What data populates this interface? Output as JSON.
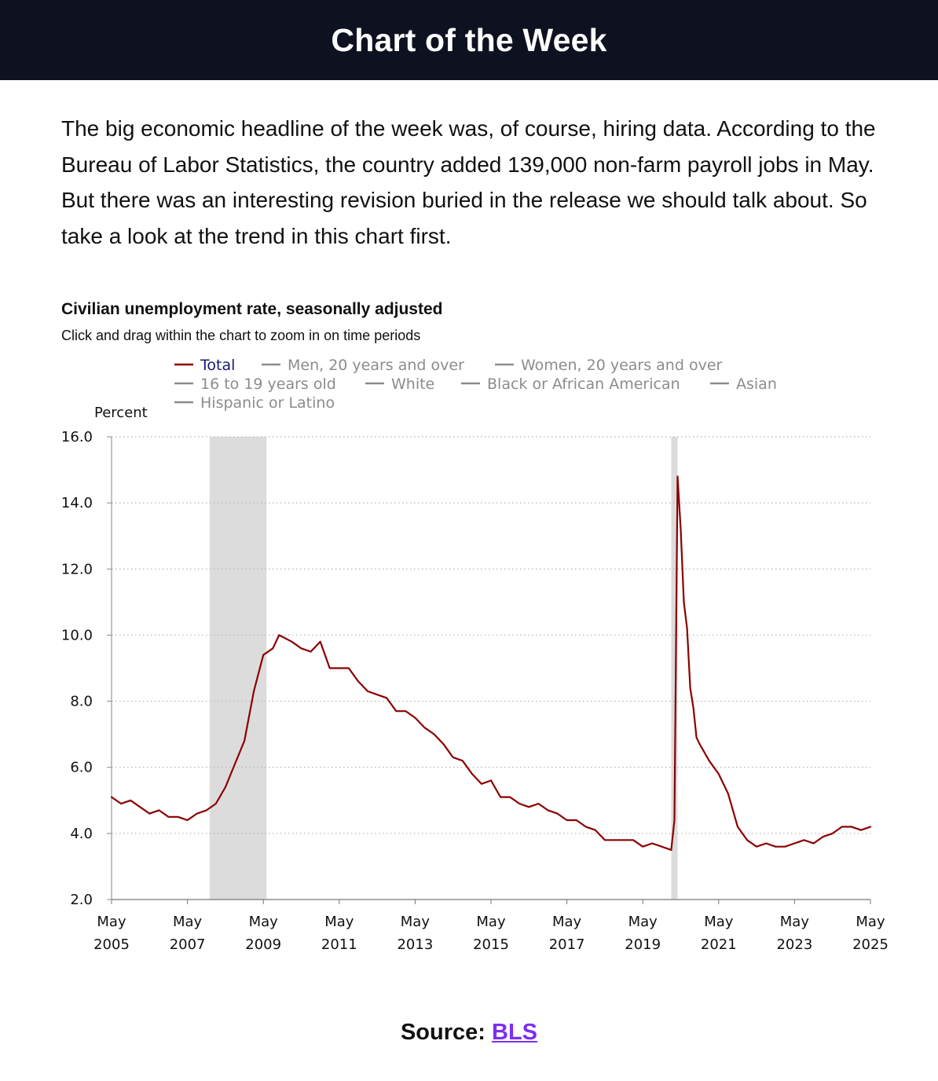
{
  "header": {
    "title": "Chart of the Week"
  },
  "intro": {
    "text": "The big economic headline of the week was, of course, hiring data. According to the Bureau of Labor Statistics, the country added 139,000 non-farm payroll jobs in May. But there was an interesting revision buried in the release we should talk about. So take a look at the trend in this chart first."
  },
  "chart": {
    "title": "Civilian unemployment rate, seasonally adjusted",
    "subtitle": "Click and drag within the chart to zoom in on time periods"
  },
  "source": {
    "label": "Source:",
    "link_text": "BLS"
  },
  "colors": {
    "total_series": "#8b0000",
    "inactive_series": "#8c8c8c",
    "active_legend_text": "#1a1a6e",
    "recession_band": "#dcdcdc",
    "header_bg": "#0e1220",
    "link": "#7b2ff7"
  },
  "chart_data": {
    "type": "line",
    "ylabel": "Percent",
    "ylim": [
      2.0,
      16.0
    ],
    "yticks": [
      "16.0",
      "14.0",
      "12.0",
      "10.0",
      "8.0",
      "6.0",
      "4.0",
      "2.0"
    ],
    "xticks": [
      {
        "month": "May",
        "year": "2005",
        "t": 2005.333
      },
      {
        "month": "May",
        "year": "2007",
        "t": 2007.333
      },
      {
        "month": "May",
        "year": "2009",
        "t": 2009.333
      },
      {
        "month": "May",
        "year": "2011",
        "t": 2011.333
      },
      {
        "month": "May",
        "year": "2013",
        "t": 2013.333
      },
      {
        "month": "May",
        "year": "2015",
        "t": 2015.333
      },
      {
        "month": "May",
        "year": "2017",
        "t": 2017.333
      },
      {
        "month": "May",
        "year": "2019",
        "t": 2019.333
      },
      {
        "month": "May",
        "year": "2021",
        "t": 2021.333
      },
      {
        "month": "May",
        "year": "2023",
        "t": 2023.333
      },
      {
        "month": "May",
        "year": "2025",
        "t": 2025.333
      }
    ],
    "xlim": [
      2005.333,
      2025.333
    ],
    "grid": "horizontal-dotted",
    "legend_placement": "top",
    "legend": [
      [
        "Total",
        "Men, 20 years and over",
        "Women, 20 years and over"
      ],
      [
        "16 to 19 years old",
        "White",
        "Black or African American",
        "Asian"
      ],
      [
        "Hispanic or Latino"
      ]
    ],
    "recessions": [
      {
        "start": "Dec 2007",
        "end": "Jun 2009"
      },
      {
        "start": "Feb 2020",
        "end": "Apr 2020"
      }
    ],
    "series": [
      {
        "name": "Total",
        "points": [
          [
            "May 2005",
            5.1
          ],
          [
            "Aug 2005",
            4.9
          ],
          [
            "Nov 2005",
            5.0
          ],
          [
            "Feb 2006",
            4.8
          ],
          [
            "May 2006",
            4.6
          ],
          [
            "Aug 2006",
            4.7
          ],
          [
            "Nov 2006",
            4.5
          ],
          [
            "Feb 2007",
            4.5
          ],
          [
            "May 2007",
            4.4
          ],
          [
            "Aug 2007",
            4.6
          ],
          [
            "Nov 2007",
            4.7
          ],
          [
            "Feb 2008",
            4.9
          ],
          [
            "May 2008",
            5.4
          ],
          [
            "Aug 2008",
            6.1
          ],
          [
            "Nov 2008",
            6.8
          ],
          [
            "Feb 2009",
            8.3
          ],
          [
            "May 2009",
            9.4
          ],
          [
            "Aug 2009",
            9.6
          ],
          [
            "Oct 2009",
            10.0
          ],
          [
            "Feb 2010",
            9.8
          ],
          [
            "May 2010",
            9.6
          ],
          [
            "Aug 2010",
            9.5
          ],
          [
            "Nov 2010",
            9.8
          ],
          [
            "Feb 2011",
            9.0
          ],
          [
            "May 2011",
            9.0
          ],
          [
            "Aug 2011",
            9.0
          ],
          [
            "Nov 2011",
            8.6
          ],
          [
            "Feb 2012",
            8.3
          ],
          [
            "May 2012",
            8.2
          ],
          [
            "Aug 2012",
            8.1
          ],
          [
            "Nov 2012",
            7.7
          ],
          [
            "Feb 2013",
            7.7
          ],
          [
            "May 2013",
            7.5
          ],
          [
            "Aug 2013",
            7.2
          ],
          [
            "Nov 2013",
            7.0
          ],
          [
            "Feb 2014",
            6.7
          ],
          [
            "May 2014",
            6.3
          ],
          [
            "Aug 2014",
            6.2
          ],
          [
            "Nov 2014",
            5.8
          ],
          [
            "Feb 2015",
            5.5
          ],
          [
            "May 2015",
            5.6
          ],
          [
            "Aug 2015",
            5.1
          ],
          [
            "Nov 2015",
            5.1
          ],
          [
            "Feb 2016",
            4.9
          ],
          [
            "May 2016",
            4.8
          ],
          [
            "Aug 2016",
            4.9
          ],
          [
            "Nov 2016",
            4.7
          ],
          [
            "Feb 2017",
            4.6
          ],
          [
            "May 2017",
            4.4
          ],
          [
            "Aug 2017",
            4.4
          ],
          [
            "Nov 2017",
            4.2
          ],
          [
            "Feb 2018",
            4.1
          ],
          [
            "May 2018",
            3.8
          ],
          [
            "Aug 2018",
            3.8
          ],
          [
            "Nov 2018",
            3.8
          ],
          [
            "Feb 2019",
            3.8
          ],
          [
            "May 2019",
            3.6
          ],
          [
            "Aug 2019",
            3.7
          ],
          [
            "Nov 2019",
            3.6
          ],
          [
            "Feb 2020",
            3.5
          ],
          [
            "Mar 2020",
            4.4
          ],
          [
            "Apr 2020",
            14.8
          ],
          [
            "May 2020",
            13.2
          ],
          [
            "Jun 2020",
            11.0
          ],
          [
            "Jul 2020",
            10.2
          ],
          [
            "Aug 2020",
            8.4
          ],
          [
            "Sep 2020",
            7.8
          ],
          [
            "Oct 2020",
            6.9
          ],
          [
            "Nov 2020",
            6.7
          ],
          [
            "Feb 2021",
            6.2
          ],
          [
            "May 2021",
            5.8
          ],
          [
            "Aug 2021",
            5.2
          ],
          [
            "Nov 2021",
            4.2
          ],
          [
            "Feb 2022",
            3.8
          ],
          [
            "May 2022",
            3.6
          ],
          [
            "Aug 2022",
            3.7
          ],
          [
            "Nov 2022",
            3.6
          ],
          [
            "Feb 2023",
            3.6
          ],
          [
            "May 2023",
            3.7
          ],
          [
            "Aug 2023",
            3.8
          ],
          [
            "Nov 2023",
            3.7
          ],
          [
            "Feb 2024",
            3.9
          ],
          [
            "May 2024",
            4.0
          ],
          [
            "Aug 2024",
            4.2
          ],
          [
            "Nov 2024",
            4.2
          ],
          [
            "Feb 2025",
            4.1
          ],
          [
            "May 2025",
            4.2
          ]
        ]
      }
    ]
  }
}
